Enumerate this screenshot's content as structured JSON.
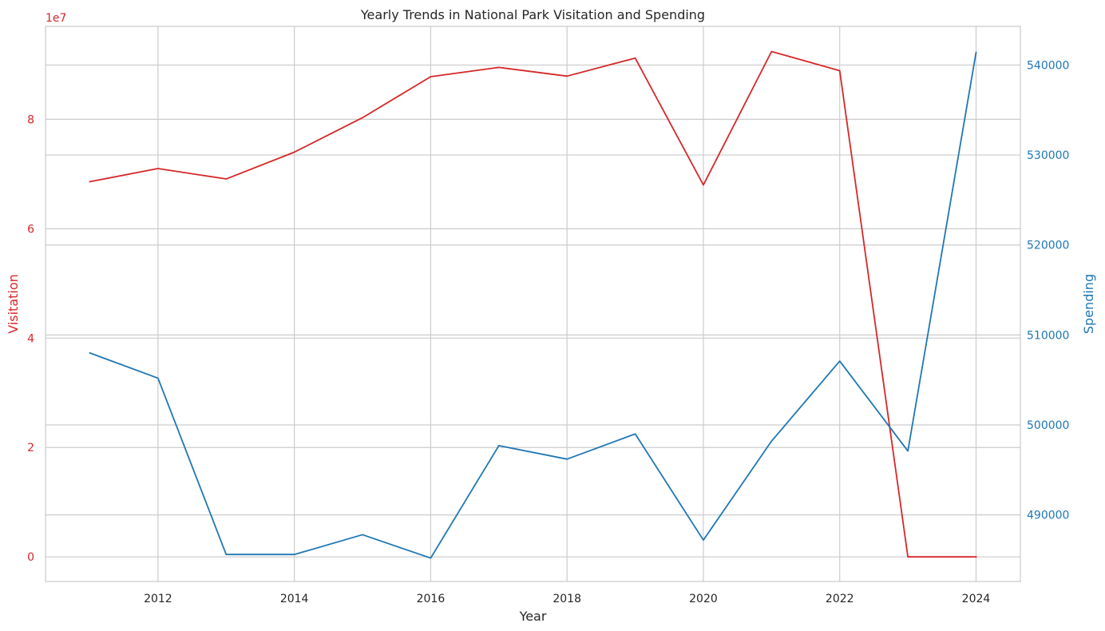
{
  "chart_data": {
    "type": "line",
    "title": "Yearly Trends in National Park Visitation and Spending",
    "xlabel": "Year",
    "x": [
      2011,
      2012,
      2013,
      2014,
      2015,
      2016,
      2017,
      2018,
      2019,
      2020,
      2021,
      2022,
      2023,
      2024
    ],
    "xlim": [
      2010.35,
      2024.65
    ],
    "x_ticks": [
      2012,
      2014,
      2016,
      2018,
      2020,
      2022,
      2024
    ],
    "grid": true,
    "legend": "none",
    "left_axis": {
      "label": "Visitation",
      "color": "#d62728",
      "offset_text": "1e7",
      "ylim": [
        -0.45,
        9.7
      ],
      "ticks": [
        0,
        2,
        4,
        6,
        8
      ]
    },
    "right_axis": {
      "label": "Spending",
      "color": "#1f77b4",
      "ylim": [
        482600,
        544300
      ],
      "ticks": [
        490000,
        500000,
        510000,
        520000,
        530000,
        540000
      ]
    },
    "series": [
      {
        "axis": "left",
        "color": "#d62728",
        "values": [
          6.86,
          7.1,
          6.91,
          7.4,
          8.03,
          8.78,
          8.95,
          8.79,
          9.12,
          6.8,
          9.24,
          8.89,
          0.0,
          0.0
        ]
      },
      {
        "axis": "right",
        "color": "#1f77b4",
        "values": [
          508000,
          505200,
          485600,
          485600,
          487800,
          485200,
          497700,
          496200,
          499000,
          487200,
          498200,
          507100,
          497100,
          541400
        ]
      }
    ]
  }
}
